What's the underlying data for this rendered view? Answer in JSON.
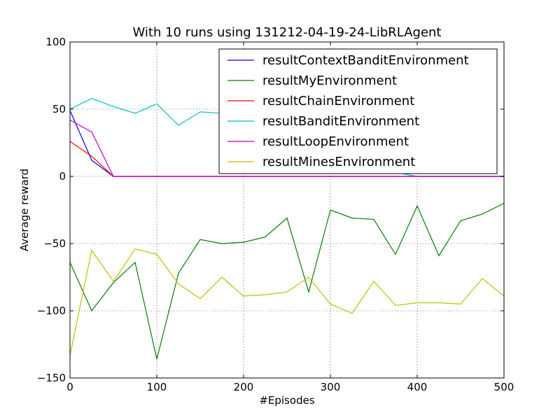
{
  "chart_data": {
    "type": "line",
    "title": "With 10 runs using 131212-04-19-24-LibRLAgent",
    "xlabel": "#Episodes",
    "ylabel": "Average reward",
    "xlim": [
      0,
      500
    ],
    "ylim": [
      -150,
      100
    ],
    "xticks": [
      0,
      100,
      200,
      300,
      400,
      500
    ],
    "yticks": [
      -150,
      -100,
      -50,
      0,
      50,
      100
    ],
    "grid": true,
    "legend_position": "top-right",
    "x": [
      0,
      25,
      50,
      75,
      100,
      125,
      150,
      175,
      200,
      225,
      250,
      275,
      300,
      325,
      350,
      375,
      400,
      425,
      450,
      475,
      500
    ],
    "series": [
      {
        "name": "resultContextBanditEnvironment",
        "color": "#0000ff",
        "values": [
          49,
          12,
          0,
          0,
          0,
          0,
          0,
          0,
          0,
          0,
          0,
          0,
          0,
          0,
          0,
          0,
          0,
          0,
          0,
          0,
          0
        ]
      },
      {
        "name": "resultMyEnvironment",
        "color": "#008000",
        "values": [
          -64,
          -100,
          -79,
          -64,
          -136,
          -72,
          -47,
          -50,
          -49,
          -45,
          -31,
          -86,
          -25,
          -31,
          -32,
          -58,
          -22,
          -59,
          -33,
          -28,
          -20
        ]
      },
      {
        "name": "resultChainEnvironment",
        "color": "#ff0000",
        "values": [
          26,
          15,
          0,
          0,
          0,
          0,
          0,
          0,
          0,
          0,
          0,
          0,
          0,
          0,
          0,
          0,
          0,
          0,
          0,
          0,
          0
        ]
      },
      {
        "name": "resultBanditEnvironment",
        "color": "#00bfbf",
        "values": [
          50,
          58,
          52,
          47,
          54,
          38,
          48,
          47,
          47,
          44,
          42,
          40,
          35,
          30,
          25,
          3,
          0,
          0,
          0,
          0,
          0
        ]
      },
      {
        "name": "resultLoopEnvironment",
        "color": "#bf00bf",
        "values": [
          42,
          33,
          0,
          0,
          0,
          0,
          0,
          0,
          0,
          0,
          0,
          0,
          0,
          0,
          0,
          0,
          0,
          0,
          0,
          0,
          0
        ]
      },
      {
        "name": "resultMinesEnvironment",
        "color": "#bfbf00",
        "values": [
          -133,
          -55,
          -78,
          -54,
          -58,
          -80,
          -91,
          -75,
          -89,
          -88,
          -86,
          -75,
          -95,
          -102,
          -78,
          -96,
          -94,
          -94,
          -95,
          -76,
          -89
        ]
      }
    ]
  }
}
